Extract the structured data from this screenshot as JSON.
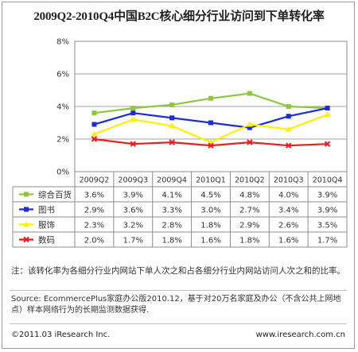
{
  "title": "2009Q2-2010Q4中国B2C核心细分行业访问到下单转化率",
  "note": "注：该转化率为各细分行业内网站下单人次之和占各细分行业内网站访问人次之和的比率。",
  "source": "Source: EcommercePlus家庭办公版2010.12，基于对20万名家庭及办公（不含公共上网地点）样本网络行为的长期监测数据获得.",
  "footer": {
    "left": "©2011.03 iResearch Inc.",
    "right": "www.iresearch.com.cn"
  },
  "chart_data": {
    "type": "line",
    "categories": [
      "2009Q2",
      "2009Q3",
      "2009Q4",
      "2010Q1",
      "2010Q2",
      "2010Q3",
      "2010Q4"
    ],
    "ylim": [
      0,
      8
    ],
    "yticks": [
      "0%",
      "2%",
      "4%",
      "6%",
      "8%"
    ],
    "grid": true,
    "legend": "table-below",
    "series": [
      {
        "name": "综合百货",
        "color": "#8dc63f",
        "marker": "square",
        "values": [
          3.6,
          3.9,
          4.1,
          4.5,
          4.8,
          4.0,
          3.9
        ],
        "labels": [
          "3.6%",
          "3.9%",
          "4.1%",
          "4.5%",
          "4.8%",
          "4.0%",
          "3.9%"
        ]
      },
      {
        "name": "图书",
        "color": "#1e2bd6",
        "marker": "square",
        "values": [
          2.9,
          3.6,
          3.3,
          3.0,
          2.7,
          3.4,
          3.9
        ],
        "labels": [
          "2.9%",
          "3.6%",
          "3.3%",
          "3.0%",
          "2.7%",
          "3.4%",
          "3.9%"
        ]
      },
      {
        "name": "服饰",
        "color": "#fff200",
        "marker": "triangle",
        "values": [
          2.3,
          3.2,
          2.8,
          1.8,
          2.9,
          2.6,
          3.5
        ],
        "labels": [
          "2.3%",
          "3.2%",
          "2.8%",
          "1.8%",
          "2.9%",
          "2.6%",
          "3.5%"
        ]
      },
      {
        "name": "数码",
        "color": "#ee1c1c",
        "marker": "cross",
        "values": [
          2.0,
          1.7,
          1.8,
          1.6,
          1.8,
          1.6,
          1.7
        ],
        "labels": [
          "2.0%",
          "1.7%",
          "1.8%",
          "1.6%",
          "1.8%",
          "1.6%",
          "1.7%"
        ]
      }
    ]
  }
}
